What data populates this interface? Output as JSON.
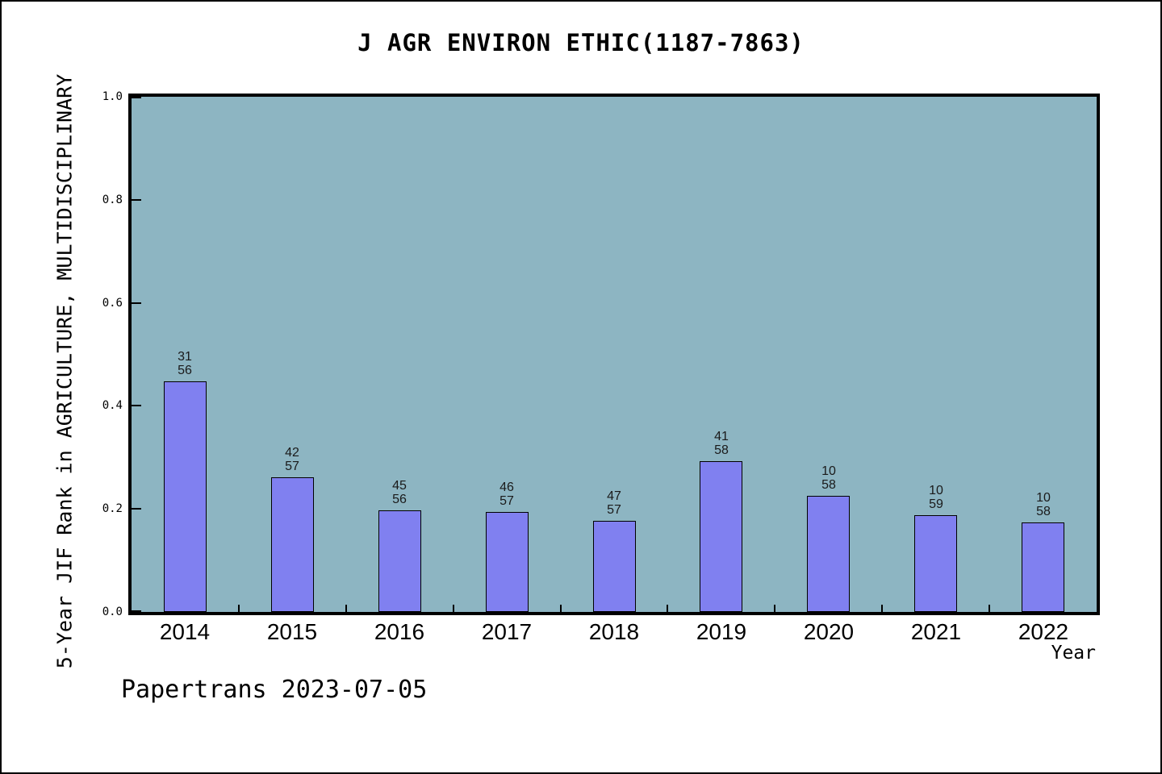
{
  "figure": {
    "background": "#ffffff",
    "border_color": "#000000"
  },
  "chart_data": {
    "type": "bar",
    "title": "J AGR ENVIRON ETHIC(1187-7863)",
    "xlabel": "Year",
    "ylabel": "5-Year JIF Rank in AGRICULTURE, MULTIDISCIPLINARY",
    "categories": [
      "2014",
      "2015",
      "2016",
      "2017",
      "2018",
      "2019",
      "2020",
      "2021",
      "2022"
    ],
    "values": [
      0.447,
      0.262,
      0.197,
      0.194,
      0.177,
      0.292,
      0.225,
      0.188,
      0.174
    ],
    "bar_labels": [
      [
        "31",
        "56"
      ],
      [
        "42",
        "57"
      ],
      [
        "45",
        "56"
      ],
      [
        "46",
        "57"
      ],
      [
        "47",
        "57"
      ],
      [
        "41",
        "58"
      ],
      [
        "10",
        "58"
      ],
      [
        "10",
        "59"
      ],
      [
        "10",
        "58"
      ]
    ],
    "ylim": [
      0.0,
      1.0
    ],
    "yticks": [
      "0.0",
      "0.2",
      "0.4",
      "0.6",
      "0.8",
      "1.0"
    ],
    "grid": false,
    "legend_position": "none",
    "colors": {
      "bar_fill": "#8080f0",
      "bar_edge": "#000000",
      "plot_background": "#8db5c2"
    }
  },
  "footer": {
    "credit": "Papertrans 2023-07-05"
  }
}
